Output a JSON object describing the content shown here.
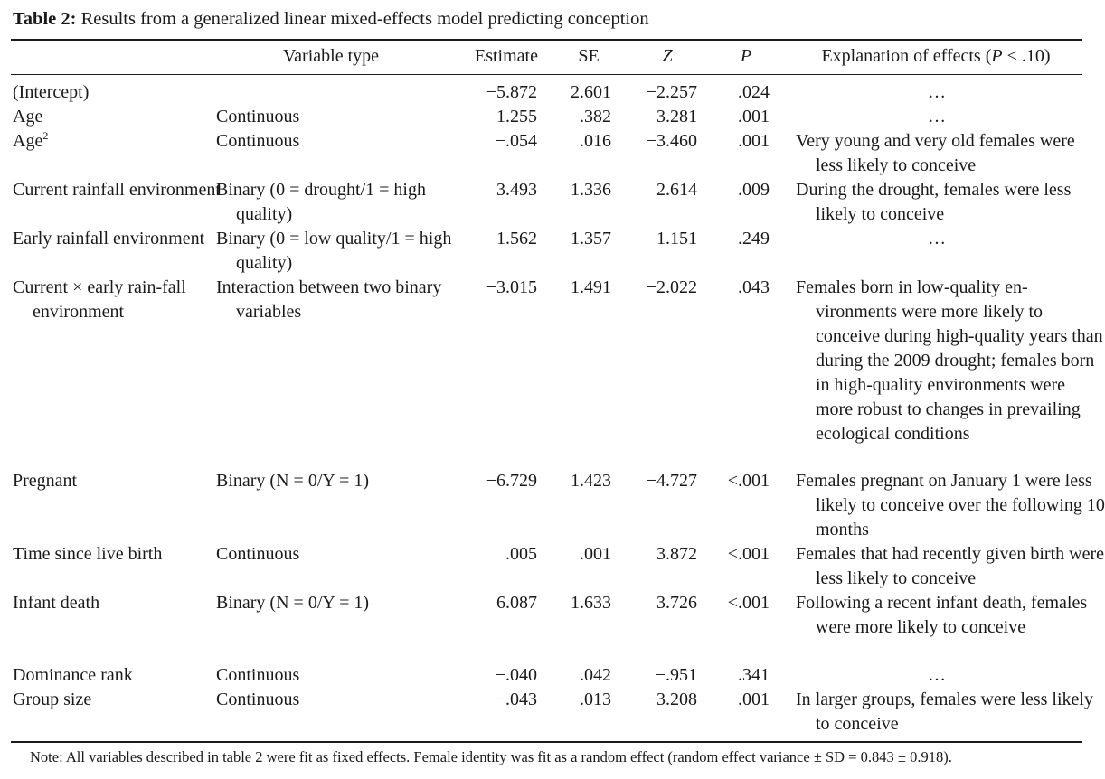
{
  "table": {
    "caption_label": "Table 2:",
    "caption_text": "Results from a generalized linear mixed-effects model predicting conception",
    "headers": {
      "variable": "",
      "type": "Variable type",
      "estimate": "Estimate",
      "se": "SE",
      "z": "Z",
      "p": "P",
      "explanation": "Explanation of effects (P < .10)"
    },
    "rows": [
      {
        "variable": "(Intercept)",
        "type": "",
        "estimate": "−5.872",
        "se": "2.601",
        "z": "−2.257",
        "p": ".024",
        "explanation": "…"
      },
      {
        "variable": "Age",
        "type": "Continuous",
        "estimate": "1.255",
        "se": ".382",
        "z": "3.281",
        "p": ".001",
        "explanation": "…"
      },
      {
        "variable": "Age",
        "variable_sup": "2",
        "type": "Continuous",
        "estimate": "−.054",
        "se": ".016",
        "z": "−3.460",
        "p": ".001",
        "explanation": "Very young and very old females were less likely to conceive"
      },
      {
        "variable": "Current rainfall environment",
        "type": "Binary (0 = drought/1 = high quality)",
        "estimate": "3.493",
        "se": "1.336",
        "z": "2.614",
        "p": ".009",
        "explanation": "During the drought, females were less likely to conceive"
      },
      {
        "variable": "Early rainfall environment",
        "type": "Binary (0 = low quality/1 = high quality)",
        "estimate": "1.562",
        "se": "1.357",
        "z": "1.151",
        "p": ".249",
        "explanation": "…"
      },
      {
        "variable": "Current × early rain-fall environment",
        "type": "Interaction between two binary variables",
        "estimate": "−3.015",
        "se": "1.491",
        "z": "−2.022",
        "p": ".043",
        "explanation": "Females born in low-quality en-vironments were more likely to conceive during high-quality years than during the 2009 drought; females born in high-quality environments were more robust to changes in prevailing ecological conditions"
      },
      {
        "variable": "Pregnant",
        "type": "Binary (N = 0/Y = 1)",
        "estimate": "−6.729",
        "se": "1.423",
        "z": "−4.727",
        "p": "<.001",
        "explanation": "Females pregnant on January 1 were less likely to conceive over the following 10 months"
      },
      {
        "variable": "Time since live birth",
        "type": "Continuous",
        "estimate": ".005",
        "se": ".001",
        "z": "3.872",
        "p": "<.001",
        "explanation": "Females that had recently given birth were less likely to conceive"
      },
      {
        "variable": "Infant death",
        "type": "Binary (N = 0/Y = 1)",
        "estimate": "6.087",
        "se": "1.633",
        "z": "3.726",
        "p": "<.001",
        "explanation": "Following a recent infant death, females were more likely to conceive"
      },
      {
        "variable": "Dominance rank",
        "type": "Continuous",
        "estimate": "−.040",
        "se": ".042",
        "z": "−.951",
        "p": ".341",
        "explanation": "…"
      },
      {
        "variable": "Group size",
        "type": "Continuous",
        "estimate": "−.043",
        "se": ".013",
        "z": "−3.208",
        "p": ".001",
        "explanation": "In larger groups, females were less likely to conceive"
      }
    ],
    "note": "Note: All variables described in table 2 were fit as fixed effects. Female identity was fit as a random effect (random effect variance ± SD = 0.843 ± 0.918)."
  }
}
